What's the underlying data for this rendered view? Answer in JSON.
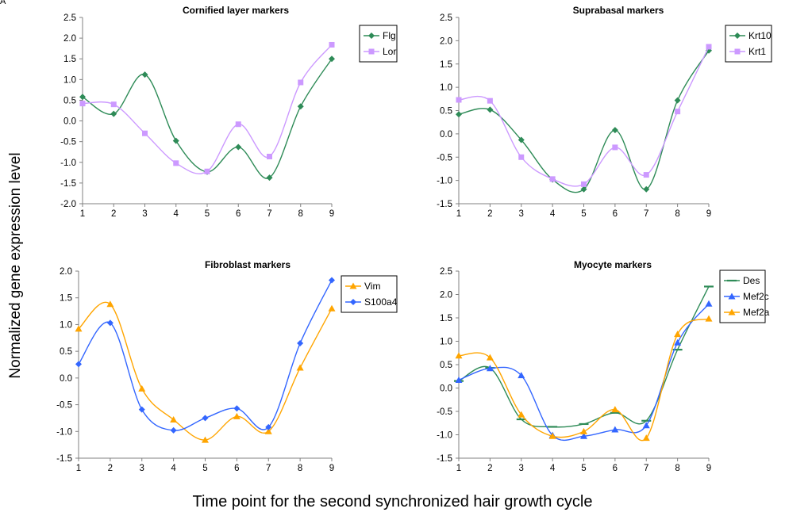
{
  "figure": {
    "panel_letter": "A",
    "ylabel": "Normalized gene expression level",
    "xlabel": "Time point for the second synchronized hair growth cycle"
  },
  "chart_data": [
    {
      "type": "line",
      "title": "Cornified layer markers",
      "xlabel": "",
      "ylabel": "",
      "x": [
        1,
        2,
        3,
        4,
        5,
        6,
        7,
        8,
        9
      ],
      "ylim": [
        -2.0,
        2.5
      ],
      "yticks": [
        -2.0,
        -1.5,
        -1.0,
        -0.5,
        0.0,
        0.5,
        1.0,
        1.5,
        2.0,
        2.5
      ],
      "ytick_labels": [
        "-2.0",
        "-1.5",
        "-1.0",
        "-0.5",
        "0.0",
        "0.5",
        "1.0",
        "1.5",
        "2.0",
        "2.5"
      ],
      "grid": false,
      "legend_position": "top-right",
      "series": [
        {
          "name": "Flg",
          "color": "#2e8b57",
          "marker": "diamond",
          "values": [
            0.58,
            0.17,
            1.12,
            -0.48,
            -1.23,
            -0.63,
            -1.37,
            0.35,
            1.5
          ]
        },
        {
          "name": "Lor",
          "color": "#cc99ff",
          "marker": "square",
          "values": [
            0.42,
            0.4,
            -0.3,
            -1.02,
            -1.22,
            -0.08,
            -0.86,
            0.93,
            1.84
          ]
        }
      ]
    },
    {
      "type": "line",
      "title": "Suprabasal markers",
      "xlabel": "",
      "ylabel": "",
      "x": [
        1,
        2,
        3,
        4,
        5,
        6,
        7,
        8,
        9
      ],
      "ylim": [
        -1.5,
        2.5
      ],
      "yticks": [
        -1.5,
        -1.0,
        -0.5,
        0.0,
        0.5,
        1.0,
        1.5,
        2.0,
        2.5
      ],
      "ytick_labels": [
        "-1.5",
        "-1.0",
        "-0.5",
        "0.0",
        "0.5",
        "1.0",
        "1.5",
        "2.0",
        "2.5"
      ],
      "grid": false,
      "legend_position": "top-right",
      "series": [
        {
          "name": "Krt10",
          "color": "#2e8b57",
          "marker": "diamond",
          "values": [
            0.42,
            0.52,
            -0.13,
            -0.98,
            -1.19,
            0.08,
            -1.19,
            0.72,
            1.79
          ]
        },
        {
          "name": "Krt1",
          "color": "#cc99ff",
          "marker": "square",
          "values": [
            0.73,
            0.71,
            -0.5,
            -0.97,
            -1.08,
            -0.29,
            -0.88,
            0.48,
            1.87
          ]
        }
      ]
    },
    {
      "type": "line",
      "title": "Fibroblast markers",
      "xlabel": "",
      "ylabel": "",
      "x": [
        1,
        2,
        3,
        4,
        5,
        6,
        7,
        8,
        9
      ],
      "ylim": [
        -1.5,
        2.0
      ],
      "yticks": [
        -1.5,
        -1.0,
        -0.5,
        0.0,
        0.5,
        1.0,
        1.5,
        2.0
      ],
      "ytick_labels": [
        "-1.5",
        "-1.0",
        "-0.5",
        "0.0",
        "0.5",
        "1.0",
        "1.5",
        "2.0"
      ],
      "grid": false,
      "legend_position": "top-right",
      "series": [
        {
          "name": "Vim",
          "color": "#ffa500",
          "marker": "triangle",
          "values": [
            0.92,
            1.38,
            -0.2,
            -0.78,
            -1.16,
            -0.72,
            -1.0,
            0.19,
            1.3
          ]
        },
        {
          "name": "S100a4",
          "color": "#3366ff",
          "marker": "diamond",
          "values": [
            0.26,
            1.03,
            -0.59,
            -0.98,
            -0.75,
            -0.57,
            -0.92,
            0.65,
            1.83
          ]
        }
      ]
    },
    {
      "type": "line",
      "title": "Myocyte markers",
      "xlabel": "",
      "ylabel": "",
      "x": [
        1,
        2,
        3,
        4,
        5,
        6,
        7,
        8,
        9
      ],
      "ylim": [
        -1.5,
        2.5
      ],
      "yticks": [
        -1.5,
        -1.0,
        -0.5,
        0.0,
        0.5,
        1.0,
        1.5,
        2.0,
        2.5
      ],
      "ytick_labels": [
        "-1.5",
        "-1.0",
        "-0.5",
        "0.0",
        "0.5",
        "1.0",
        "1.5",
        "2.0",
        "2.5"
      ],
      "grid": false,
      "legend_position": "top-right",
      "series": [
        {
          "name": "Des",
          "color": "#2e8b57",
          "marker": "dash",
          "values": [
            0.15,
            0.43,
            -0.67,
            -0.83,
            -0.77,
            -0.53,
            -0.7,
            0.82,
            2.17
          ]
        },
        {
          "name": "Mef2c",
          "color": "#3366ff",
          "marker": "triangle",
          "values": [
            0.17,
            0.42,
            0.27,
            -1.01,
            -1.03,
            -0.89,
            -0.8,
            0.97,
            1.8
          ]
        },
        {
          "name": "Mef2a",
          "color": "#ffa500",
          "marker": "triangle",
          "values": [
            0.69,
            0.65,
            -0.57,
            -1.03,
            -0.93,
            -0.46,
            -1.07,
            1.15,
            1.48
          ]
        }
      ]
    }
  ]
}
